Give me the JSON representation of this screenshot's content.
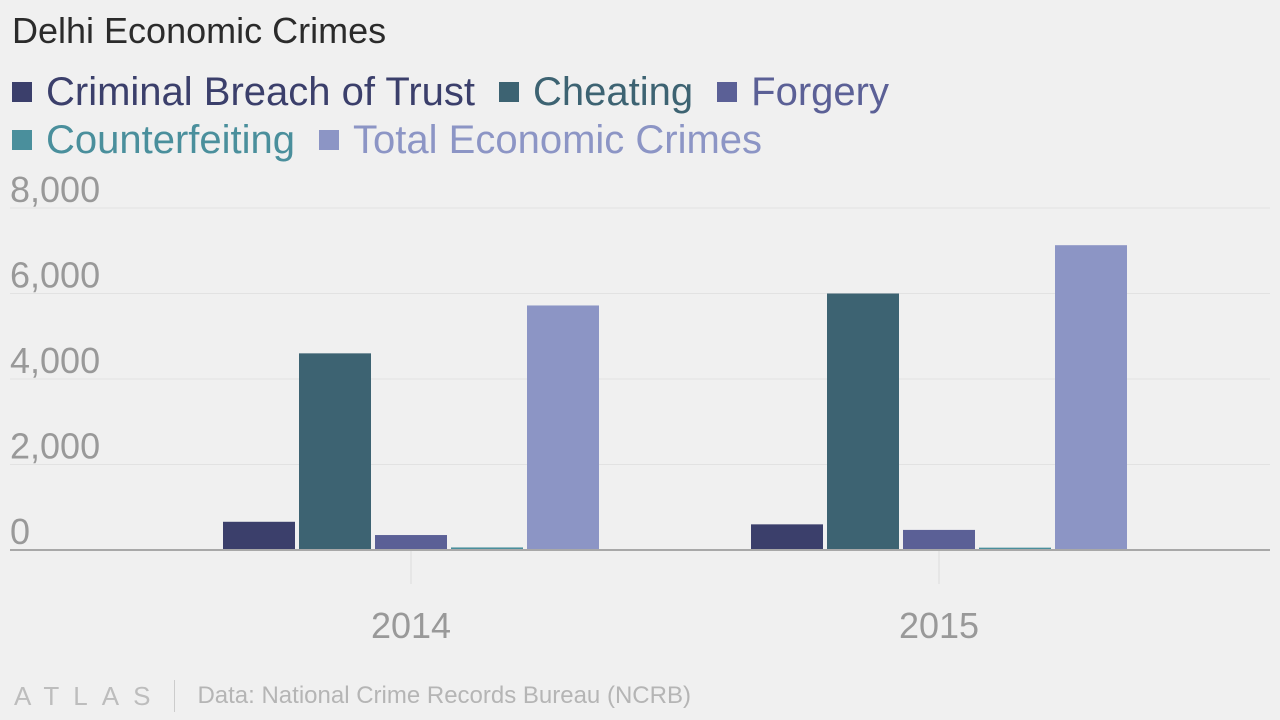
{
  "title": "Delhi Economic Crimes",
  "footer": {
    "logo": "ATLAS",
    "source": "Data: National Crime Records Bureau (NCRB)"
  },
  "colors": {
    "background": "#f0f0f0",
    "grid": "#e2e2e2",
    "baseline": "#a8a8a8"
  },
  "chart_data": {
    "type": "bar",
    "title": "Delhi Economic Crimes",
    "xlabel": "",
    "ylabel": "",
    "categories": [
      "2014",
      "2015"
    ],
    "ylim": [
      0,
      8000
    ],
    "yticks": [
      0,
      2000,
      4000,
      6000,
      8000
    ],
    "ytick_labels": [
      "0",
      "2,000",
      "4,000",
      "6,000",
      "8,000"
    ],
    "grid": true,
    "legend_position": "top-left",
    "series": [
      {
        "name": "Criminal Breach of Trust",
        "color": "#3b3f6b",
        "values": [
          660,
          600
        ]
      },
      {
        "name": "Cheating",
        "color": "#3d6372",
        "values": [
          4600,
          6000
        ]
      },
      {
        "name": "Forgery",
        "color": "#5b6096",
        "values": [
          350,
          470
        ]
      },
      {
        "name": "Counterfeiting",
        "color": "#4a8f9c",
        "values": [
          60,
          55
        ]
      },
      {
        "name": "Total Economic Crimes",
        "color": "#8c95c5",
        "values": [
          5720,
          7130
        ]
      }
    ]
  }
}
